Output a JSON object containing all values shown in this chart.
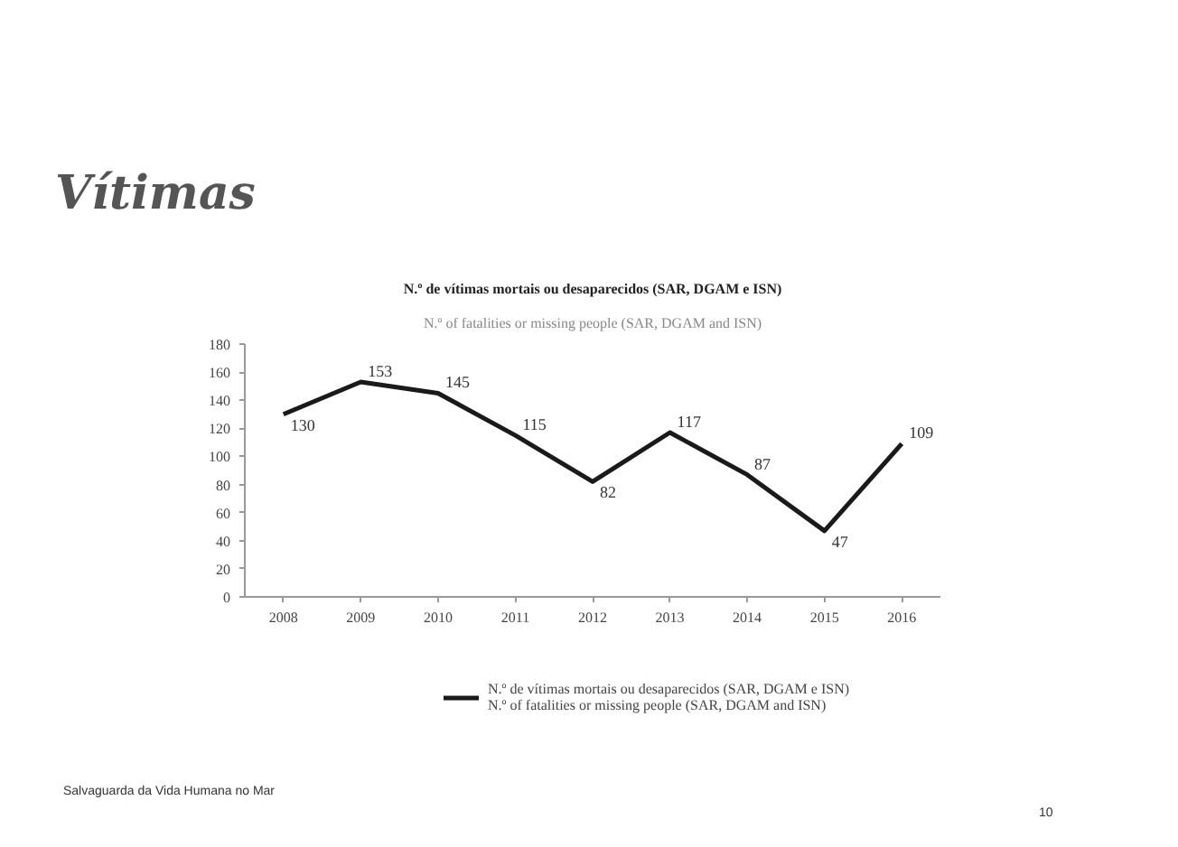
{
  "chart_data": {
    "type": "line",
    "title": "Vítimas",
    "subtitle": "N.º de vítimas mortais ou desaparecidos (SAR, DGAM e ISN)",
    "annotations": [
      "N.º of fatalities or missing people (SAR, DGAM and ISN)",
      "Salvaguarda  da Vida Humana no Mar",
      "10"
    ],
    "categories": [
      "2008",
      "2009",
      "2010",
      "2011",
      "2012",
      "2013",
      "2014",
      "2015",
      "2016"
    ],
    "series": [
      {
        "name": "N.º de vítimas mortais ou desaparecidos (SAR, DGAM e ISN)\nN.º of fatalities or missing people (SAR, DGAM and ISN)",
        "color": "#1a1a1a",
        "values": [
          130,
          153,
          145,
          115,
          82,
          117,
          87,
          47,
          109
        ]
      }
    ],
    "ylim": [
      0,
      180
    ],
    "yticks": [
      0,
      20,
      40,
      60,
      80,
      100,
      120,
      140,
      160,
      180
    ],
    "data_labels": true,
    "legend": "bottom",
    "grid": false,
    "line_style": "solid"
  }
}
